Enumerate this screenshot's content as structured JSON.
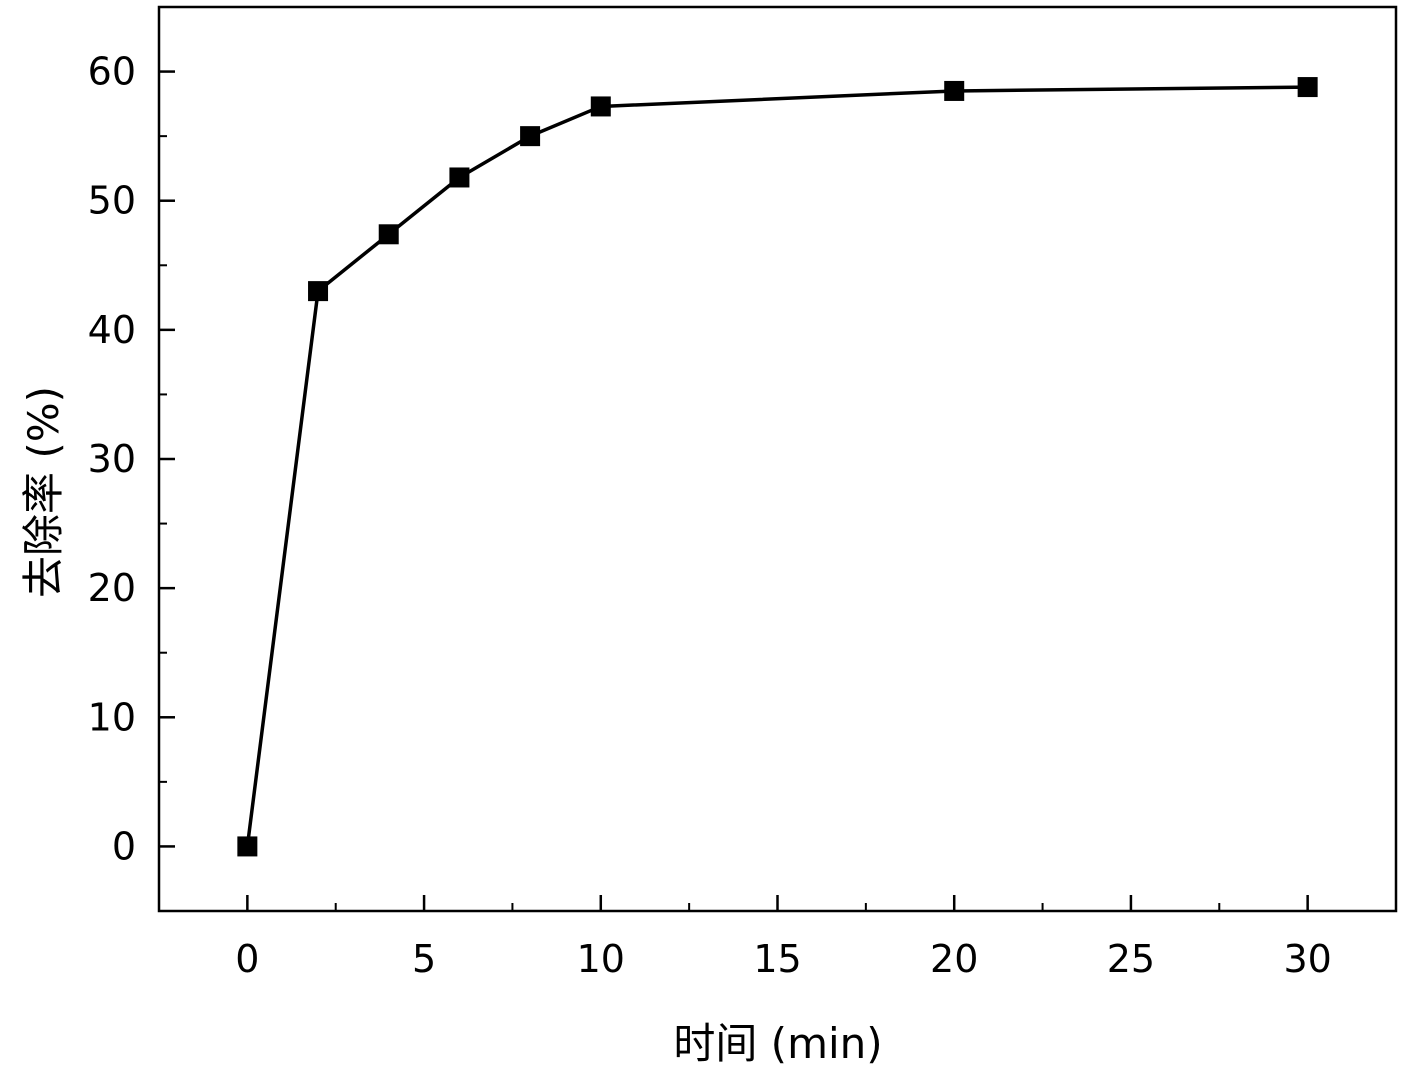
{
  "chart_data": {
    "type": "line",
    "title": "",
    "xlabel": "时间 (min)",
    "ylabel": "去除率 (%)",
    "xlim": [
      -2.5,
      32.5
    ],
    "ylim": [
      -5,
      65
    ],
    "xticks": [
      0,
      5,
      10,
      15,
      20,
      25,
      30
    ],
    "xtick_labels": [
      "0",
      "5",
      "10",
      "15",
      "20",
      "25",
      "30"
    ],
    "yticks": [
      0,
      10,
      20,
      30,
      40,
      50,
      60
    ],
    "ytick_labels": [
      "0",
      "10",
      "20",
      "30",
      "40",
      "50",
      "60"
    ],
    "grid": false,
    "legend": "none",
    "marker": "square",
    "color": "#000000",
    "series": [
      {
        "x": [
          0,
          2,
          4,
          6,
          8,
          10,
          20,
          30
        ],
        "y": [
          0,
          43.0,
          47.4,
          51.8,
          55.0,
          57.3,
          58.5,
          58.8
        ]
      }
    ]
  }
}
